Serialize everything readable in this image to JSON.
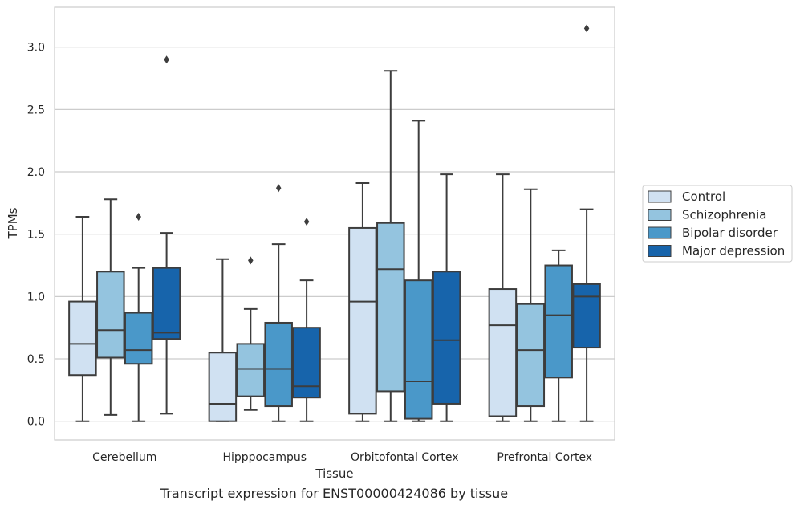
{
  "caption": "Transcript expression for ENST00000424086 by tissue",
  "chart_data": {
    "type": "boxplot",
    "title": "",
    "xlabel": "Tissue",
    "ylabel": "TPMs",
    "ylim": [
      -0.15,
      3.32
    ],
    "yticks": [
      0.0,
      0.5,
      1.0,
      1.5,
      2.0,
      2.5,
      3.0
    ],
    "ytick_labels": [
      "0.0",
      "0.5",
      "1.0",
      "1.5",
      "2.0",
      "2.5",
      "3.0"
    ],
    "grid": "horizontal",
    "legend_position": "right",
    "categories": [
      "Cerebellum",
      "Hipppocampus",
      "Orbitofontal Cortex",
      "Prefrontal Cortex"
    ],
    "series": [
      {
        "name": "Control",
        "color": "#d0e1f2",
        "boxes": [
          {
            "min": 0.0,
            "q1": 0.37,
            "median": 0.62,
            "q3": 0.96,
            "max": 1.64,
            "outliers": []
          },
          {
            "min": 0.0,
            "q1": 0.0,
            "median": 0.14,
            "q3": 0.55,
            "max": 1.3,
            "outliers": []
          },
          {
            "min": 0.0,
            "q1": 0.06,
            "median": 0.96,
            "q3": 1.55,
            "max": 1.91,
            "outliers": []
          },
          {
            "min": 0.0,
            "q1": 0.04,
            "median": 0.77,
            "q3": 1.06,
            "max": 1.98,
            "outliers": []
          }
        ]
      },
      {
        "name": "Schizophrenia",
        "color": "#94c4df",
        "boxes": [
          {
            "min": 0.05,
            "q1": 0.51,
            "median": 0.73,
            "q3": 1.2,
            "max": 1.78,
            "outliers": []
          },
          {
            "min": 0.09,
            "q1": 0.2,
            "median": 0.42,
            "q3": 0.62,
            "max": 0.9,
            "outliers": [
              1.29
            ]
          },
          {
            "min": 0.0,
            "q1": 0.24,
            "median": 1.22,
            "q3": 1.59,
            "max": 2.81,
            "outliers": []
          },
          {
            "min": 0.0,
            "q1": 0.12,
            "median": 0.57,
            "q3": 0.94,
            "max": 1.86,
            "outliers": []
          }
        ]
      },
      {
        "name": "Bipolar disorder",
        "color": "#4a98c9",
        "boxes": [
          {
            "min": 0.0,
            "q1": 0.46,
            "median": 0.57,
            "q3": 0.87,
            "max": 1.23,
            "outliers": [
              1.64
            ]
          },
          {
            "min": 0.0,
            "q1": 0.12,
            "median": 0.42,
            "q3": 0.79,
            "max": 1.42,
            "outliers": [
              1.87
            ]
          },
          {
            "min": 0.0,
            "q1": 0.02,
            "median": 0.32,
            "q3": 1.13,
            "max": 2.41,
            "outliers": []
          },
          {
            "min": 0.0,
            "q1": 0.35,
            "median": 0.85,
            "q3": 1.25,
            "max": 1.37,
            "outliers": []
          }
        ]
      },
      {
        "name": "Major depression",
        "color": "#1764ab",
        "boxes": [
          {
            "min": 0.06,
            "q1": 0.66,
            "median": 0.71,
            "q3": 1.23,
            "max": 1.51,
            "outliers": [
              2.9
            ]
          },
          {
            "min": 0.0,
            "q1": 0.19,
            "median": 0.28,
            "q3": 0.75,
            "max": 1.13,
            "outliers": [
              1.6
            ]
          },
          {
            "min": 0.0,
            "q1": 0.14,
            "median": 0.65,
            "q3": 1.2,
            "max": 1.98,
            "outliers": []
          },
          {
            "min": 0.0,
            "q1": 0.59,
            "median": 1.0,
            "q3": 1.1,
            "max": 1.7,
            "outliers": [
              3.15
            ]
          }
        ]
      }
    ]
  }
}
